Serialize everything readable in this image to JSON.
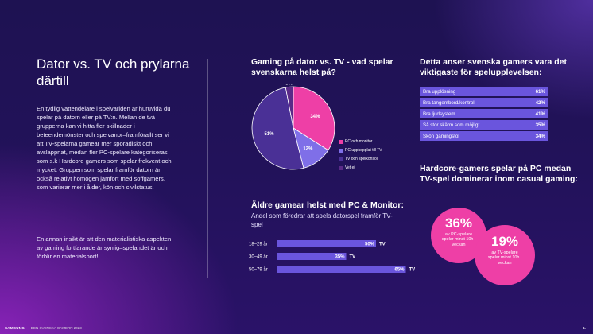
{
  "slide": {
    "title": "Dator vs. TV och prylarna därtill",
    "paragraph1": "En tydlig vattendelare i spelvärlden är huruvida du spelar på datorn eller på TV:n. Mellan de två grupperna kan vi hitta fler skillnader i beteendemönster och speivanor–framförallt ser vi att TV-spelarna gamear mer sporadiskt och avslappnat, medan fler PC-spelare kategoriseras som s.k Hardcore gamers som spelar frekvent och mycket. Gruppen som spelar framför datorn är också relativt homogen jämfört med soffgamers, som varierar mer i ålder, kön och civilstatus.",
    "paragraph2": "En annan insikt är att den materialistiska aspekten av gaming fortfarande är synlig–spelandet är och förblir en materialsport!",
    "footer_brand": "SAMSUNG",
    "footer_text": "· DEN SVENSKA GAMERN 2023",
    "page_number": "6."
  },
  "colors": {
    "pink": "#ee3fa6",
    "lavender": "#7f6fe8",
    "dark_purple": "#4a3096",
    "darkest": "#5a2a88",
    "bar_fill": "#6a55dd",
    "row_fill": "#6a55dd"
  },
  "chart_data": [
    {
      "type": "pie",
      "title": "Gaming på dator vs. TV - vad spelar svenskarna helst på?",
      "labels": [
        "PC och monitor",
        "PC uppkopplat till TV",
        "TV och spelkonsol",
        "Vet ej"
      ],
      "values": [
        34,
        12,
        51,
        3
      ],
      "value_labels": [
        "34%",
        "12%",
        "51%",
        "3%"
      ],
      "colors": [
        "#ee3fa6",
        "#7f6fe8",
        "#4a3096",
        "#5a2a88"
      ],
      "legend_position": "right"
    },
    {
      "type": "bar",
      "orientation": "horizontal",
      "title": "Äldre gamear helst med PC & Monitor:",
      "subtitle": "Andel som föredrar att spela datorspel framför TV-spel",
      "categories": [
        "18–29 år",
        "30–49 år",
        "50–79 år"
      ],
      "values": [
        50,
        35,
        65
      ],
      "value_labels": [
        "50%",
        "35%",
        "65%"
      ],
      "end_label": "TV",
      "xlim": [
        0,
        100
      ]
    },
    {
      "type": "table",
      "title": "Detta anser svenska gamers vara det viktigaste för spelupplevelsen:",
      "rows": [
        {
          "label": "Bra upplösning",
          "value": "61%"
        },
        {
          "label": "Bra tangentbord/kontroll",
          "value": "42%"
        },
        {
          "label": "Bra ljudsystem",
          "value": "41%"
        },
        {
          "label": "Så stor skärm som möjligt",
          "value": "35%"
        },
        {
          "label": "Skön gamingstol",
          "value": "34%"
        }
      ]
    }
  ],
  "hardcore": {
    "title": "Hardcore-gamers spelar på PC medan TV-spel dominerar inom casual gaming:",
    "pc_value": "36%",
    "pc_caption": "av PC-spelare spelar minst 10h i veckan",
    "tv_value": "19%",
    "tv_caption": "av TV-spelare spelar minst 10h i veckan"
  }
}
